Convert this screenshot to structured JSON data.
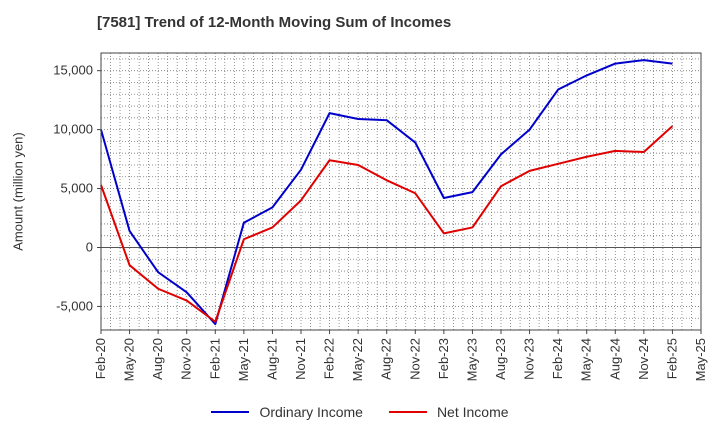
{
  "chart_data": {
    "type": "line",
    "title": "[7581]  Trend of 12-Month Moving Sum of Incomes",
    "xlabel": "",
    "ylabel": "Amount (million yen)",
    "ylim": [
      -7000,
      16500
    ],
    "yticks": [
      -5000,
      0,
      5000,
      10000,
      15000
    ],
    "ytick_labels": [
      "-5,000",
      "0",
      "5,000",
      "10,000",
      "15,000"
    ],
    "categories": [
      "Feb-20",
      "May-20",
      "Aug-20",
      "Nov-20",
      "Feb-21",
      "May-21",
      "Aug-21",
      "Nov-21",
      "Feb-22",
      "May-22",
      "Aug-22",
      "Nov-22",
      "Feb-23",
      "May-23",
      "Aug-23",
      "Nov-23",
      "Feb-24",
      "May-24",
      "Aug-24",
      "Nov-24",
      "Feb-25",
      "May-25"
    ],
    "grid": true,
    "legend_position": "bottom",
    "series": [
      {
        "name": "Ordinary Income",
        "color": "#0000cc",
        "values": [
          10000,
          1400,
          -2100,
          -3800,
          -6500,
          2100,
          3400,
          6600,
          11400,
          10900,
          10800,
          8900,
          4200,
          4700,
          7900,
          10000,
          13400,
          14600,
          15600,
          15900,
          15600,
          null
        ]
      },
      {
        "name": "Net Income",
        "color": "#e00000",
        "values": [
          5300,
          -1500,
          -3500,
          -4500,
          -6300,
          700,
          1700,
          4000,
          7400,
          7000,
          5700,
          4600,
          1200,
          1700,
          5200,
          6500,
          7100,
          7700,
          8200,
          8100,
          10300,
          null
        ]
      }
    ]
  }
}
